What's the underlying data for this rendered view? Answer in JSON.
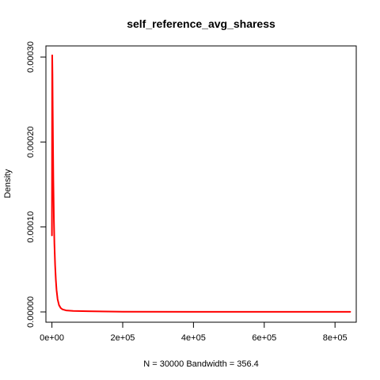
{
  "chart_data": {
    "type": "line",
    "title": "self_reference_avg_sharess",
    "xlabel": "N = 30000   Bandwidth = 356.4",
    "ylabel": "Density",
    "xlim": [
      -17000,
      860000
    ],
    "ylim": [
      -1.21e-05,
      0.0003131
    ],
    "x_ticks": [
      0,
      200000,
      400000,
      600000,
      800000
    ],
    "x_tick_labels": [
      "0e+00",
      "2e+05",
      "4e+05",
      "6e+05",
      "8e+05"
    ],
    "y_ticks": [
      0,
      0.0001,
      0.0002,
      0.0003
    ],
    "y_tick_labels": [
      "0.00000",
      "0.00010",
      "0.00020",
      "0.00030"
    ],
    "grid": false,
    "series": [
      {
        "color": "#ff0000",
        "x": [
          0,
          800,
          1500,
          2200,
          3000,
          4000,
          5500,
          7000,
          9000,
          11000,
          13000,
          16000,
          20000,
          25000,
          30000,
          40000,
          60000,
          100000,
          200000,
          400000,
          600000,
          843000
        ],
        "y": [
          9e-05,
          0.000302,
          0.00028,
          0.00024,
          0.0002,
          0.000155,
          0.00011,
          8e-05,
          5.5e-05,
          3.8e-05,
          2.6e-05,
          1.5e-05,
          8e-06,
          4.5e-06,
          3e-06,
          1.8e-06,
          1.2e-06,
          8e-07,
          3e-07,
          1e-07,
          1e-07,
          1e-07
        ]
      }
    ]
  }
}
